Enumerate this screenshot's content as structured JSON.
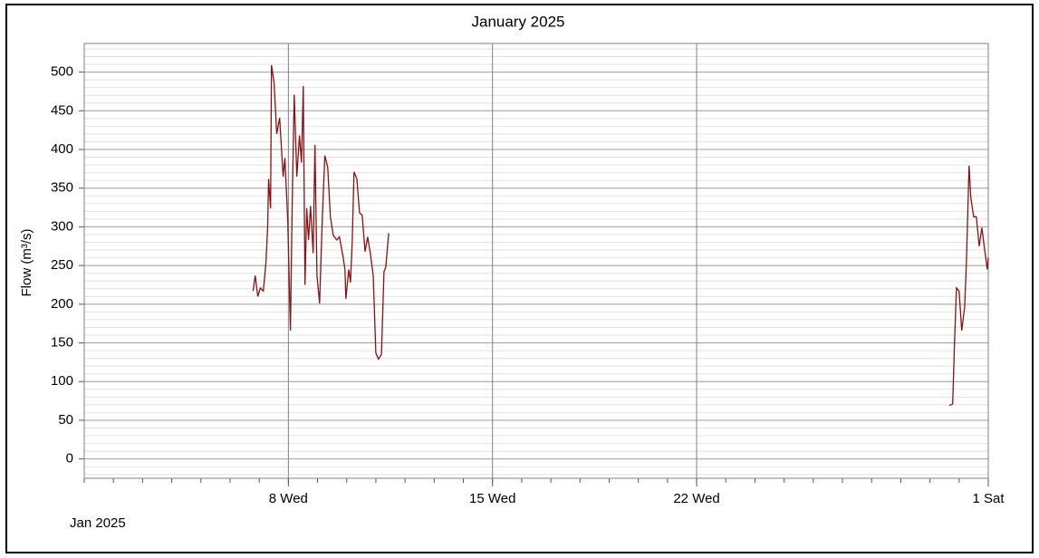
{
  "chart_data": {
    "type": "line",
    "title": "January 2025",
    "ylabel": "Flow (m³/s)",
    "period_label": "Jan 2025",
    "xlim": [
      0,
      31
    ],
    "ylim": [
      -25,
      537
    ],
    "xticks": [
      {
        "value": 7,
        "label": "8 Wed"
      },
      {
        "value": 14,
        "label": "15 Wed"
      },
      {
        "value": 21,
        "label": "22 Wed"
      },
      {
        "value": 31,
        "label": "1 Sat"
      }
    ],
    "yticks": [
      0,
      50,
      100,
      150,
      200,
      250,
      300,
      350,
      400,
      450,
      500
    ],
    "grid": true,
    "series": [
      {
        "name": "Flow",
        "color": "#8b1010",
        "x": [
          5.79,
          5.86,
          5.95,
          6.04,
          6.14,
          6.23,
          6.29,
          6.32,
          6.39,
          6.42,
          6.51,
          6.6,
          6.7,
          6.82,
          6.88,
          6.98,
          7.07,
          7.13,
          7.2,
          7.29,
          7.38,
          7.45,
          7.51,
          7.57,
          7.63,
          7.69,
          7.76,
          7.85,
          7.91,
          7.98,
          8.07,
          8.16,
          8.25,
          8.35,
          8.44,
          8.54,
          8.66,
          8.75,
          8.88,
          8.94,
          8.97,
          9.07,
          9.13,
          9.19,
          9.25,
          9.35,
          9.44,
          9.53,
          9.63,
          9.72,
          9.81,
          9.91,
          10.0,
          10.09,
          10.19,
          10.28,
          10.34,
          10.44,
          20.0,
          29.66,
          29.78,
          29.84,
          29.91,
          30.0,
          30.09,
          30.19,
          30.25,
          30.34,
          30.4,
          30.5,
          30.59,
          30.69,
          30.78,
          30.87,
          30.97,
          31.0
        ],
        "values": [
          217,
          237,
          210,
          221,
          217,
          254,
          301,
          362,
          324,
          509,
          486,
          420,
          441,
          365,
          389,
          307,
          166,
          324,
          471,
          365,
          418,
          383,
          482,
          225,
          324,
          283,
          327,
          266,
          406,
          237,
          201,
          307,
          392,
          377,
          313,
          289,
          283,
          287,
          260,
          245,
          207,
          245,
          228,
          283,
          371,
          362,
          318,
          315,
          268,
          287,
          266,
          237,
          137,
          129,
          135,
          242,
          248,
          292,
          null,
          69,
          71,
          149,
          221,
          217,
          166,
          196,
          256,
          379,
          338,
          313,
          313,
          275,
          299,
          272,
          245,
          260
        ]
      }
    ]
  }
}
